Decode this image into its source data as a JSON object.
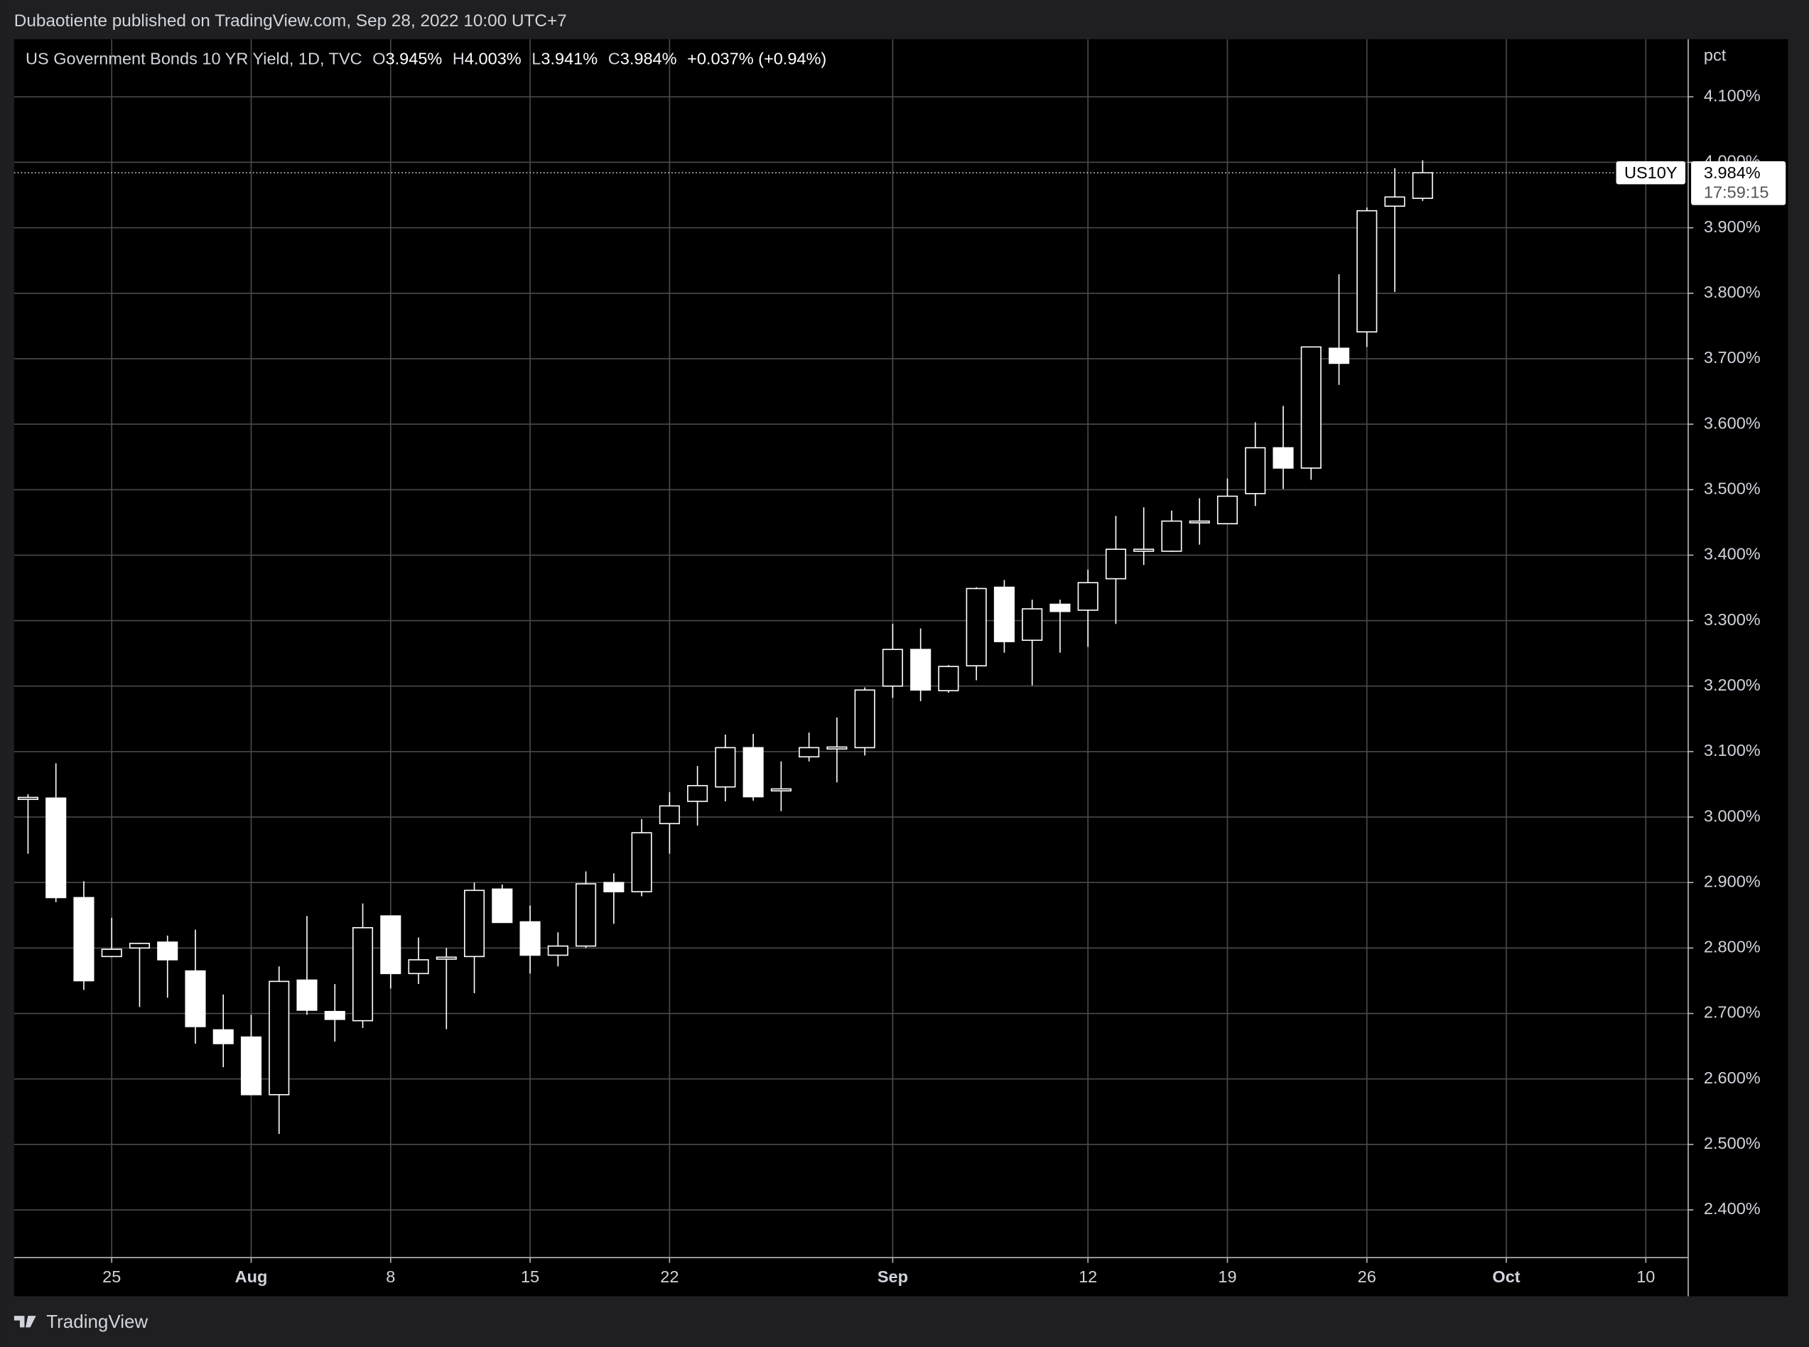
{
  "published": "Dubaotiente published on TradingView.com, Sep 28, 2022 10:00 UTC+7",
  "footer": "TradingView",
  "chart_data": {
    "type": "candlestick",
    "title": "US Government Bonds 10 YR Yield, 1D, TVC",
    "ohlc_legend": [
      {
        "key": "O",
        "label": "3.945%"
      },
      {
        "key": "H",
        "label": "4.003%"
      },
      {
        "key": "L",
        "label": "3.941%"
      },
      {
        "key": "C",
        "label": "3.984%"
      }
    ],
    "change_label": "+0.037% (+0.94%)",
    "y_unit": "pct",
    "symbol_tag": "US10Y",
    "last_label": "3.984%",
    "countdown": "17:59:15",
    "up_color": "#000000",
    "down_color": "#ffffff",
    "line_color": "#ffffff",
    "grid": true,
    "x": [
      "2022-07-20",
      "2022-07-21",
      "2022-07-22",
      "2022-07-25",
      "2022-07-26",
      "2022-07-27",
      "2022-07-28",
      "2022-07-29",
      "2022-08-01",
      "2022-08-02",
      "2022-08-03",
      "2022-08-04",
      "2022-08-05",
      "2022-08-08",
      "2022-08-09",
      "2022-08-10",
      "2022-08-11",
      "2022-08-12",
      "2022-08-15",
      "2022-08-16",
      "2022-08-17",
      "2022-08-18",
      "2022-08-19",
      "2022-08-22",
      "2022-08-23",
      "2022-08-24",
      "2022-08-25",
      "2022-08-26",
      "2022-08-29",
      "2022-08-30",
      "2022-08-31",
      "2022-09-01",
      "2022-09-02",
      "2022-09-05",
      "2022-09-06",
      "2022-09-07",
      "2022-09-08",
      "2022-09-09",
      "2022-09-12",
      "2022-09-13",
      "2022-09-14",
      "2022-09-15",
      "2022-09-16",
      "2022-09-19",
      "2022-09-20",
      "2022-09-21",
      "2022-09-22",
      "2022-09-23",
      "2022-09-26",
      "2022-09-27",
      "2022-09-28"
    ],
    "open": [
      3.027,
      3.029,
      2.877,
      2.787,
      2.8,
      2.809,
      2.765,
      2.675,
      2.664,
      2.576,
      2.751,
      2.703,
      2.689,
      2.849,
      2.761,
      2.783,
      2.787,
      2.89,
      2.84,
      2.789,
      2.803,
      2.9,
      2.886,
      2.99,
      3.024,
      3.046,
      3.106,
      3.04,
      3.092,
      3.104,
      3.106,
      3.2,
      3.256,
      3.193,
      3.231,
      3.351,
      3.27,
      3.325,
      3.316,
      3.364,
      3.406,
      3.406,
      3.45,
      3.448,
      3.494,
      3.564,
      3.533,
      3.716,
      3.741,
      3.933,
      3.945
    ],
    "high": [
      3.035,
      3.082,
      2.902,
      2.846,
      2.808,
      2.819,
      2.828,
      2.729,
      2.698,
      2.772,
      2.849,
      2.745,
      2.868,
      2.849,
      2.816,
      2.8,
      2.9,
      2.897,
      2.865,
      2.824,
      2.917,
      2.914,
      2.997,
      3.038,
      3.078,
      3.126,
      3.127,
      3.085,
      3.129,
      3.152,
      3.198,
      3.295,
      3.288,
      3.232,
      3.351,
      3.362,
      3.332,
      3.332,
      3.378,
      3.46,
      3.473,
      3.468,
      3.487,
      3.517,
      3.603,
      3.628,
      3.718,
      3.829,
      3.931,
      3.991,
      4.003
    ],
    "low": [
      2.944,
      2.87,
      2.736,
      2.786,
      2.71,
      2.724,
      2.654,
      2.618,
      2.576,
      2.516,
      2.698,
      2.657,
      2.678,
      2.738,
      2.745,
      2.676,
      2.731,
      2.839,
      2.761,
      2.772,
      2.8,
      2.837,
      2.879,
      2.944,
      2.987,
      3.024,
      3.025,
      3.009,
      3.085,
      3.053,
      3.094,
      3.182,
      3.177,
      3.19,
      3.209,
      3.251,
      3.201,
      3.251,
      3.26,
      3.295,
      3.385,
      3.405,
      3.416,
      3.448,
      3.475,
      3.501,
      3.515,
      3.66,
      3.718,
      3.802,
      3.941
    ],
    "close": [
      3.03,
      2.877,
      2.75,
      2.798,
      2.807,
      2.782,
      2.68,
      2.654,
      2.576,
      2.749,
      2.705,
      2.691,
      2.831,
      2.761,
      2.782,
      2.786,
      2.888,
      2.839,
      2.789,
      2.803,
      2.898,
      2.886,
      2.976,
      3.017,
      3.048,
      3.106,
      3.031,
      3.043,
      3.106,
      3.107,
      3.194,
      3.256,
      3.194,
      3.23,
      3.349,
      3.268,
      3.318,
      3.314,
      3.358,
      3.409,
      3.409,
      3.452,
      3.452,
      3.49,
      3.564,
      3.533,
      3.718,
      3.693,
      3.926,
      3.947,
      3.984
    ],
    "xlim": [
      "2022-07-20",
      "2022-10-11"
    ],
    "xticks": [
      {
        "value": "2022-07-25",
        "label": "25"
      },
      {
        "value": "2022-08-01",
        "label": "Aug"
      },
      {
        "value": "2022-08-08",
        "label": "8"
      },
      {
        "value": "2022-08-15",
        "label": "15"
      },
      {
        "value": "2022-08-22",
        "label": "22"
      },
      {
        "value": "2022-09-01",
        "label": "Sep"
      },
      {
        "value": "2022-09-12",
        "label": "12"
      },
      {
        "value": "2022-09-19",
        "label": "19"
      },
      {
        "value": "2022-09-26",
        "label": "26"
      },
      {
        "value": "2022-10-03",
        "label": "Oct"
      },
      {
        "value": "2022-10-10",
        "label": "10"
      }
    ],
    "ylim": [
      2.328,
      4.188
    ],
    "yticks": [
      {
        "value": 2.4,
        "label": "2.400%"
      },
      {
        "value": 2.5,
        "label": "2.500%"
      },
      {
        "value": 2.6,
        "label": "2.600%"
      },
      {
        "value": 2.7,
        "label": "2.700%"
      },
      {
        "value": 2.8,
        "label": "2.800%"
      },
      {
        "value": 2.9,
        "label": "2.900%"
      },
      {
        "value": 3.0,
        "label": "3.000%"
      },
      {
        "value": 3.1,
        "label": "3.100%"
      },
      {
        "value": 3.2,
        "label": "3.200%"
      },
      {
        "value": 3.3,
        "label": "3.300%"
      },
      {
        "value": 3.4,
        "label": "3.400%"
      },
      {
        "value": 3.5,
        "label": "3.500%"
      },
      {
        "value": 3.6,
        "label": "3.600%"
      },
      {
        "value": 3.7,
        "label": "3.700%"
      },
      {
        "value": 3.8,
        "label": "3.800%"
      },
      {
        "value": 3.9,
        "label": "3.900%"
      },
      {
        "value": 4.0,
        "label": "4.000%"
      },
      {
        "value": 4.1,
        "label": "4.100%"
      }
    ]
  }
}
